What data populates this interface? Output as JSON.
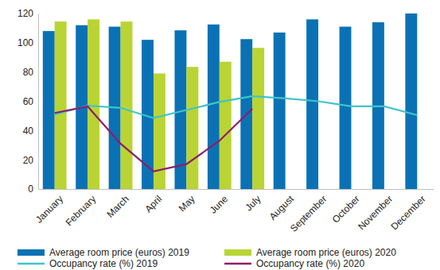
{
  "chart_data": {
    "type": "bar",
    "categories": [
      "January",
      "February",
      "March",
      "April",
      "May",
      "June",
      "July",
      "August",
      "September",
      "October",
      "November",
      "December"
    ],
    "series": [
      {
        "name": "Average room price (euros) 2019",
        "type": "bar",
        "color": "#0a72b4",
        "values": [
          108,
          112,
          111,
          102,
          108.5,
          112.5,
          102.5,
          107,
          116,
          111,
          114,
          120
        ]
      },
      {
        "name": "Average room price (euros) 2020",
        "type": "bar",
        "color": "#b9d434",
        "values": [
          114.5,
          116,
          114.5,
          79,
          83.5,
          87,
          96.5,
          null,
          null,
          null,
          null,
          null
        ]
      },
      {
        "name": "Occupancy rate (%) 2019",
        "type": "line",
        "color": "#40c4c9",
        "values": [
          51,
          57,
          55.5,
          48.5,
          54,
          59.5,
          63.5,
          62,
          60,
          56.5,
          56.5,
          50.5
        ]
      },
      {
        "name": "Occupancy rate (%) 2020",
        "type": "line",
        "color": "#8e1c6c",
        "values": [
          52,
          56.5,
          31,
          12,
          17,
          33,
          55,
          null,
          null,
          null,
          null,
          null
        ]
      }
    ],
    "ylim": [
      0,
      120
    ],
    "yticks": [
      0,
      20,
      40,
      60,
      80,
      100,
      120
    ],
    "grid": false,
    "legend": "bottom"
  }
}
